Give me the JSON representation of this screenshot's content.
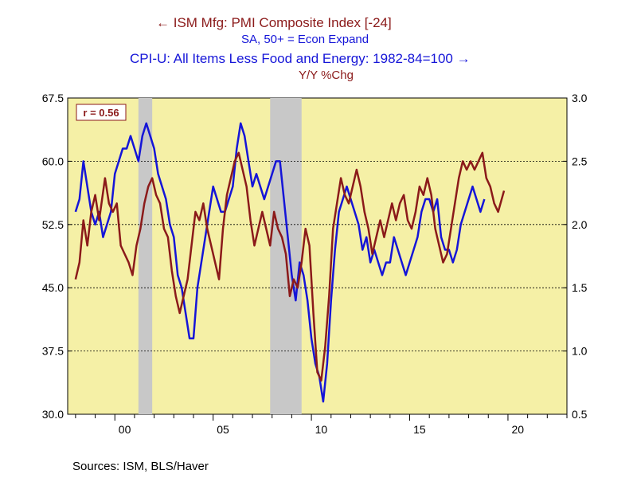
{
  "legend": {
    "series1_label": "ISM Mfg: PMI Composite Index [-24]",
    "series1_sub": "SA, 50+ = Econ Expand",
    "series2_label": "CPI-U: All Items Less Food and Energy: 1982-84=100",
    "series2_sub": "Y/Y %Chg",
    "arrow_left": "←",
    "arrow_right": "→"
  },
  "source": "Sources:  ISM, BLS/Haver",
  "correlation_label": "r = 0.56",
  "colors": {
    "series1": "#8B1A1A",
    "series2": "#1515d8",
    "plot_bg": "#f5f0a6",
    "recession": "#c8c8c8"
  },
  "chart_data": {
    "type": "line",
    "left_axis": {
      "ticks": [
        "67.5",
        "60.0",
        "52.5",
        "45.0",
        "37.5",
        "30.0"
      ],
      "min": 30,
      "max": 67.5
    },
    "right_axis": {
      "ticks": [
        "3.0",
        "2.5",
        "2.0",
        "1.5",
        "1.0",
        "0.5"
      ],
      "min": 0.5,
      "max": 3.0
    },
    "x_ticks": [
      {
        "label": "00",
        "year": 2000
      },
      {
        "label": "05",
        "year": 2005
      },
      {
        "label": "10",
        "year": 2010
      },
      {
        "label": "15",
        "year": 2015
      },
      {
        "label": "20",
        "year": 2020
      }
    ],
    "x_range": [
      1997.6,
      2023.0
    ],
    "recessions": [
      [
        2001.2,
        2001.9
      ],
      [
        2007.9,
        2009.5
      ]
    ],
    "grid": "horizontal dashed",
    "series": [
      {
        "name": "ISM Mfg: PMI Composite Index [-24]",
        "axis": "left",
        "points": [
          [
            1998.0,
            46
          ],
          [
            1998.2,
            48
          ],
          [
            1998.4,
            53
          ],
          [
            1998.6,
            50
          ],
          [
            1998.8,
            54
          ],
          [
            1999.0,
            56
          ],
          [
            1999.2,
            53
          ],
          [
            1999.5,
            58
          ],
          [
            1999.7,
            55
          ],
          [
            1999.9,
            54
          ],
          [
            2000.1,
            55
          ],
          [
            2000.3,
            50
          ],
          [
            2000.5,
            49
          ],
          [
            2000.7,
            48
          ],
          [
            2000.9,
            46.5
          ],
          [
            2001.1,
            50
          ],
          [
            2001.3,
            52
          ],
          [
            2001.5,
            55
          ],
          [
            2001.7,
            57
          ],
          [
            2001.9,
            58
          ],
          [
            2002.1,
            56
          ],
          [
            2002.3,
            55
          ],
          [
            2002.5,
            52
          ],
          [
            2002.7,
            51
          ],
          [
            2002.9,
            47
          ],
          [
            2003.1,
            44
          ],
          [
            2003.3,
            42
          ],
          [
            2003.5,
            44
          ],
          [
            2003.7,
            46
          ],
          [
            2003.9,
            50
          ],
          [
            2004.1,
            54
          ],
          [
            2004.3,
            53
          ],
          [
            2004.5,
            55
          ],
          [
            2004.7,
            52
          ],
          [
            2004.9,
            50
          ],
          [
            2005.1,
            48
          ],
          [
            2005.3,
            46
          ],
          [
            2005.5,
            52
          ],
          [
            2005.7,
            56
          ],
          [
            2005.9,
            58
          ],
          [
            2006.1,
            60
          ],
          [
            2006.3,
            61
          ],
          [
            2006.5,
            59
          ],
          [
            2006.7,
            57
          ],
          [
            2006.9,
            53
          ],
          [
            2007.1,
            50
          ],
          [
            2007.3,
            52
          ],
          [
            2007.5,
            54
          ],
          [
            2007.7,
            52
          ],
          [
            2007.9,
            50
          ],
          [
            2008.1,
            54
          ],
          [
            2008.3,
            52
          ],
          [
            2008.5,
            51
          ],
          [
            2008.7,
            49
          ],
          [
            2008.9,
            44
          ],
          [
            2009.1,
            46
          ],
          [
            2009.3,
            45
          ],
          [
            2009.5,
            48
          ],
          [
            2009.7,
            52
          ],
          [
            2009.9,
            50
          ],
          [
            2010.1,
            42
          ],
          [
            2010.3,
            35
          ],
          [
            2010.5,
            34
          ],
          [
            2010.7,
            38
          ],
          [
            2010.9,
            44
          ],
          [
            2011.1,
            52
          ],
          [
            2011.3,
            55
          ],
          [
            2011.5,
            58
          ],
          [
            2011.7,
            56
          ],
          [
            2011.9,
            55
          ],
          [
            2012.1,
            57
          ],
          [
            2012.3,
            59
          ],
          [
            2012.5,
            57
          ],
          [
            2012.7,
            54
          ],
          [
            2012.9,
            52
          ],
          [
            2013.1,
            49
          ],
          [
            2013.3,
            51
          ],
          [
            2013.5,
            53
          ],
          [
            2013.7,
            51
          ],
          [
            2013.9,
            53
          ],
          [
            2014.1,
            55
          ],
          [
            2014.3,
            53
          ],
          [
            2014.5,
            55
          ],
          [
            2014.7,
            56
          ],
          [
            2014.9,
            53
          ],
          [
            2015.1,
            52
          ],
          [
            2015.3,
            54
          ],
          [
            2015.5,
            57
          ],
          [
            2015.7,
            56
          ],
          [
            2015.9,
            58
          ],
          [
            2016.1,
            56
          ],
          [
            2016.3,
            52
          ],
          [
            2016.5,
            50
          ],
          [
            2016.7,
            48
          ],
          [
            2016.9,
            49
          ],
          [
            2017.1,
            52
          ],
          [
            2017.3,
            55
          ],
          [
            2017.5,
            58
          ],
          [
            2017.7,
            60
          ],
          [
            2017.9,
            59
          ],
          [
            2018.1,
            60
          ],
          [
            2018.3,
            59
          ],
          [
            2018.5,
            60
          ],
          [
            2018.7,
            61
          ],
          [
            2018.9,
            58
          ],
          [
            2019.1,
            57
          ],
          [
            2019.3,
            55
          ],
          [
            2019.5,
            54
          ],
          [
            2019.8,
            56.5
          ]
        ]
      },
      {
        "name": "CPI-U: All Items Less Food and Energy: 1982-84=100",
        "axis": "right",
        "points": [
          [
            1998.0,
            2.1
          ],
          [
            1998.2,
            2.2
          ],
          [
            1998.4,
            2.5
          ],
          [
            1998.6,
            2.3
          ],
          [
            1998.8,
            2.1
          ],
          [
            1999.0,
            2.0
          ],
          [
            1999.2,
            2.1
          ],
          [
            1999.4,
            1.9
          ],
          [
            1999.6,
            2.0
          ],
          [
            1999.8,
            2.1
          ],
          [
            2000.0,
            2.4
          ],
          [
            2000.2,
            2.5
          ],
          [
            2000.4,
            2.6
          ],
          [
            2000.6,
            2.6
          ],
          [
            2000.8,
            2.7
          ],
          [
            2001.0,
            2.6
          ],
          [
            2001.2,
            2.5
          ],
          [
            2001.4,
            2.7
          ],
          [
            2001.6,
            2.8
          ],
          [
            2001.8,
            2.7
          ],
          [
            2002.0,
            2.6
          ],
          [
            2002.2,
            2.4
          ],
          [
            2002.4,
            2.3
          ],
          [
            2002.6,
            2.2
          ],
          [
            2002.8,
            2.0
          ],
          [
            2003.0,
            1.9
          ],
          [
            2003.2,
            1.6
          ],
          [
            2003.4,
            1.5
          ],
          [
            2003.6,
            1.3
          ],
          [
            2003.8,
            1.1
          ],
          [
            2004.0,
            1.1
          ],
          [
            2004.2,
            1.5
          ],
          [
            2004.4,
            1.7
          ],
          [
            2004.6,
            1.9
          ],
          [
            2004.8,
            2.1
          ],
          [
            2005.0,
            2.3
          ],
          [
            2005.2,
            2.2
          ],
          [
            2005.4,
            2.1
          ],
          [
            2005.6,
            2.1
          ],
          [
            2005.8,
            2.2
          ],
          [
            2006.0,
            2.3
          ],
          [
            2006.2,
            2.6
          ],
          [
            2006.4,
            2.8
          ],
          [
            2006.6,
            2.7
          ],
          [
            2006.8,
            2.5
          ],
          [
            2007.0,
            2.3
          ],
          [
            2007.2,
            2.4
          ],
          [
            2007.4,
            2.3
          ],
          [
            2007.6,
            2.2
          ],
          [
            2007.8,
            2.3
          ],
          [
            2008.0,
            2.4
          ],
          [
            2008.2,
            2.5
          ],
          [
            2008.4,
            2.5
          ],
          [
            2008.6,
            2.2
          ],
          [
            2008.8,
            1.9
          ],
          [
            2009.0,
            1.6
          ],
          [
            2009.2,
            1.4
          ],
          [
            2009.4,
            1.7
          ],
          [
            2009.6,
            1.6
          ],
          [
            2009.8,
            1.4
          ],
          [
            2010.0,
            1.1
          ],
          [
            2010.2,
            0.9
          ],
          [
            2010.4,
            0.8
          ],
          [
            2010.6,
            0.6
          ],
          [
            2010.8,
            0.9
          ],
          [
            2011.0,
            1.4
          ],
          [
            2011.2,
            1.8
          ],
          [
            2011.4,
            2.1
          ],
          [
            2011.6,
            2.2
          ],
          [
            2011.8,
            2.3
          ],
          [
            2012.0,
            2.2
          ],
          [
            2012.2,
            2.1
          ],
          [
            2012.4,
            2.0
          ],
          [
            2012.6,
            1.8
          ],
          [
            2012.8,
            1.9
          ],
          [
            2013.0,
            1.7
          ],
          [
            2013.2,
            1.8
          ],
          [
            2013.4,
            1.7
          ],
          [
            2013.6,
            1.6
          ],
          [
            2013.8,
            1.7
          ],
          [
            2014.0,
            1.7
          ],
          [
            2014.2,
            1.9
          ],
          [
            2014.4,
            1.8
          ],
          [
            2014.6,
            1.7
          ],
          [
            2014.8,
            1.6
          ],
          [
            2015.0,
            1.7
          ],
          [
            2015.2,
            1.8
          ],
          [
            2015.4,
            1.9
          ],
          [
            2015.6,
            2.1
          ],
          [
            2015.8,
            2.2
          ],
          [
            2016.0,
            2.2
          ],
          [
            2016.2,
            2.1
          ],
          [
            2016.4,
            2.2
          ],
          [
            2016.6,
            1.9
          ],
          [
            2016.8,
            1.8
          ],
          [
            2017.0,
            1.8
          ],
          [
            2017.2,
            1.7
          ],
          [
            2017.4,
            1.8
          ],
          [
            2017.6,
            2.0
          ],
          [
            2017.8,
            2.1
          ],
          [
            2018.0,
            2.2
          ],
          [
            2018.2,
            2.3
          ],
          [
            2018.4,
            2.2
          ],
          [
            2018.6,
            2.1
          ],
          [
            2018.8,
            2.2
          ]
        ]
      }
    ]
  }
}
